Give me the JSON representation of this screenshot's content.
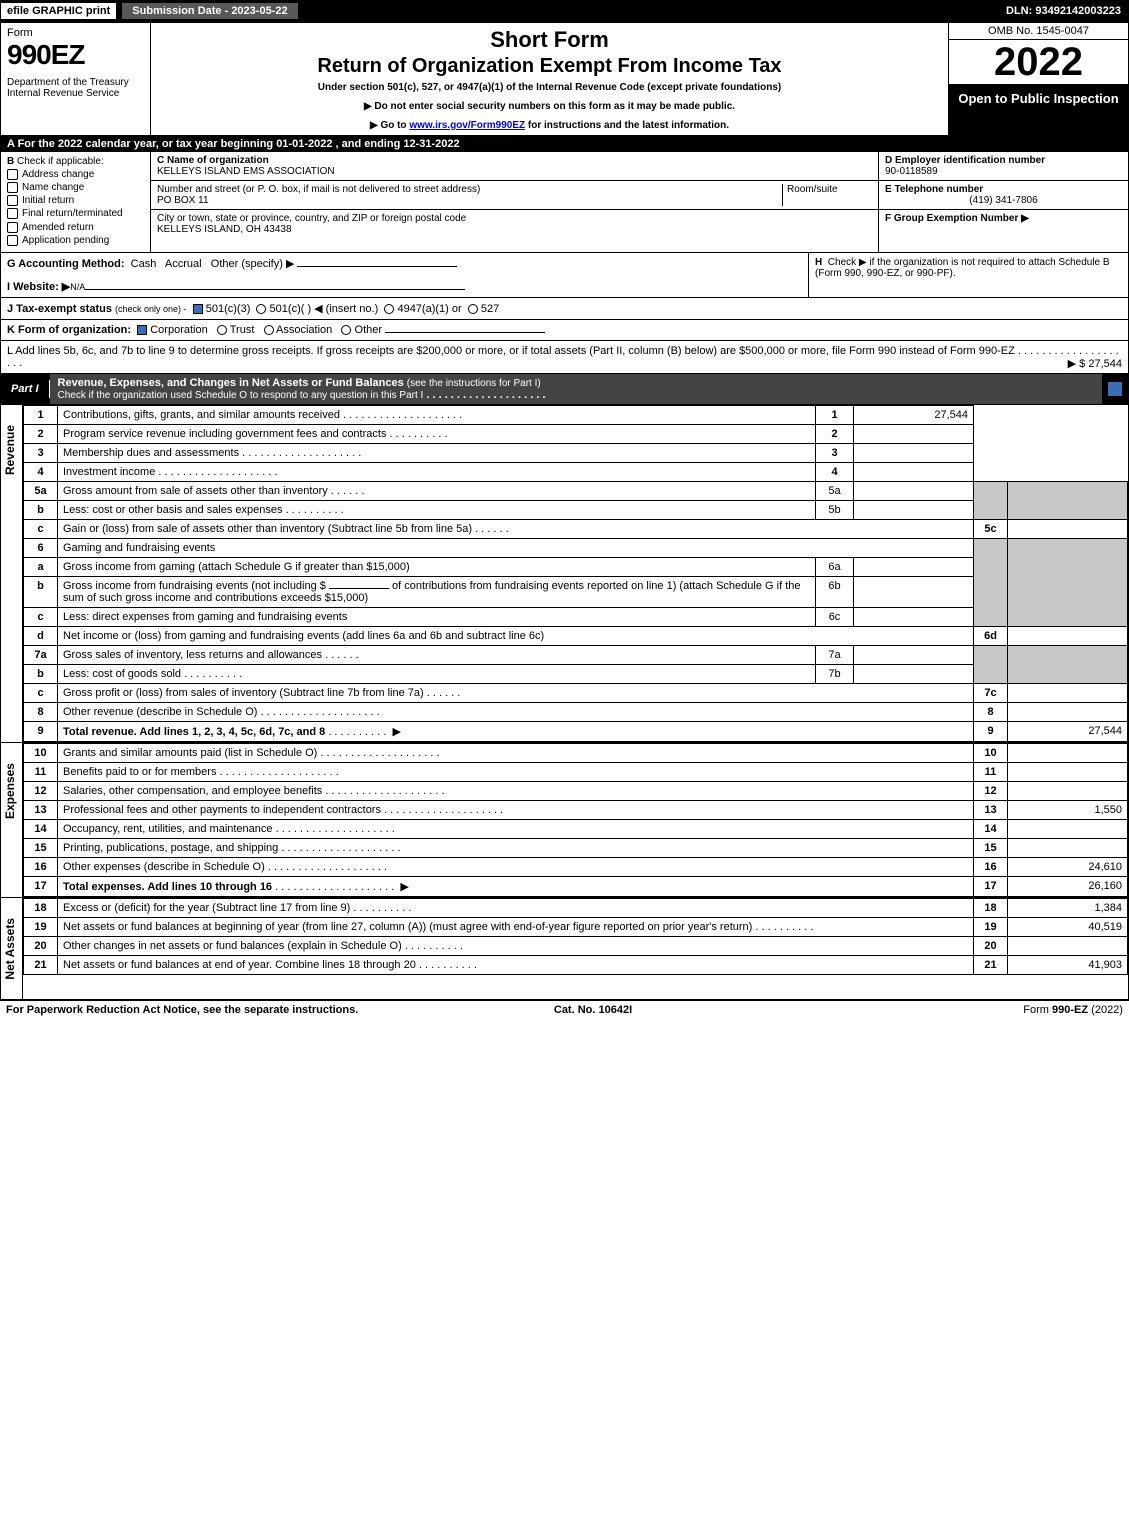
{
  "topbar": {
    "efile": "efile GRAPHIC print",
    "subdate": "Submission Date - 2023-05-22",
    "dln": "DLN: 93492142003223"
  },
  "header": {
    "form_word": "Form",
    "form_num": "990EZ",
    "dept": "Department of the Treasury\nInternal Revenue Service",
    "short": "Short Form",
    "title": "Return of Organization Exempt From Income Tax",
    "under": "Under section 501(c), 527, or 4947(a)(1) of the Internal Revenue Code (except private foundations)",
    "notice1": "▶ Do not enter social security numbers on this form as it may be made public.",
    "notice2_pre": "▶ Go to ",
    "notice2_link": "www.irs.gov/Form990EZ",
    "notice2_post": " for instructions and the latest information.",
    "omb": "OMB No. 1545-0047",
    "year": "2022",
    "open": "Open to Public Inspection"
  },
  "line_a": "A  For the 2022 calendar year, or tax year beginning 01-01-2022  , and ending 12-31-2022",
  "box_b": {
    "hdr": "B",
    "lbl": "Check if applicable:",
    "items": [
      "Address change",
      "Name change",
      "Initial return",
      "Final return/terminated",
      "Amended return",
      "Application pending"
    ]
  },
  "box_c": {
    "c_lbl": "C Name of organization",
    "c_val": "KELLEYS ISLAND EMS ASSOCIATION",
    "addr_lbl": "Number and street (or P. O. box, if mail is not delivered to street address)",
    "addr_val": "PO BOX 11",
    "room_lbl": "Room/suite",
    "city_lbl": "City or town, state or province, country, and ZIP or foreign postal code",
    "city_val": "KELLEYS ISLAND, OH  43438"
  },
  "box_d": {
    "d_lbl": "D Employer identification number",
    "d_val": "90-0118589",
    "e_lbl": "E Telephone number",
    "e_val": "(419) 341-7806",
    "f_lbl": "F Group Exemption Number   ▶"
  },
  "g": {
    "lbl": "G Accounting Method:",
    "cash": "Cash",
    "accrual": "Accrual",
    "other": "Other (specify) ▶"
  },
  "h": {
    "pre": "H",
    "txt": "Check ▶",
    "post": "if the organization is not required to attach Schedule B (Form 990, 990-EZ, or 990-PF)."
  },
  "i": {
    "lbl": "I Website: ▶",
    "val": "N/A"
  },
  "j": {
    "lbl": "J Tax-exempt status",
    "sub": "(check only one) -",
    "o1": "501(c)(3)",
    "o2": "501(c)(  ) ◀ (insert no.)",
    "o3": "4947(a)(1) or",
    "o4": "527"
  },
  "k": {
    "lbl": "K Form of organization:",
    "o1": "Corporation",
    "o2": "Trust",
    "o3": "Association",
    "o4": "Other"
  },
  "l": {
    "txt": "L Add lines 5b, 6c, and 7b to line 9 to determine gross receipts. If gross receipts are $200,000 or more, or if total assets (Part II, column (B) below) are $500,000 or more, file Form 990 instead of Form 990-EZ",
    "amt": "▶ $ 27,544"
  },
  "part1": {
    "tag": "Part I",
    "txt": "Revenue, Expenses, and Changes in Net Assets or Fund Balances",
    "sub": "(see the instructions for Part I)",
    "sub2": "Check if the organization used Schedule O to respond to any question in this Part I"
  },
  "rev": [
    {
      "n": "1",
      "d": "Contributions, gifts, grants, and similar amounts received",
      "r": "1",
      "a": "27,544"
    },
    {
      "n": "2",
      "d": "Program service revenue including government fees and contracts",
      "r": "2",
      "a": ""
    },
    {
      "n": "3",
      "d": "Membership dues and assessments",
      "r": "3",
      "a": ""
    },
    {
      "n": "4",
      "d": "Investment income",
      "r": "4",
      "a": ""
    }
  ],
  "rev5a": {
    "n": "5a",
    "d": "Gross amount from sale of assets other than inventory",
    "sn": "5a"
  },
  "rev5b": {
    "n": "b",
    "d": "Less: cost or other basis and sales expenses",
    "sn": "5b"
  },
  "rev5c": {
    "n": "c",
    "d": "Gain or (loss) from sale of assets other than inventory (Subtract line 5b from line 5a)",
    "r": "5c"
  },
  "rev6": {
    "n": "6",
    "d": "Gaming and fundraising events"
  },
  "rev6a": {
    "n": "a",
    "d": "Gross income from gaming (attach Schedule G if greater than $15,000)",
    "sn": "6a"
  },
  "rev6b": {
    "n": "b",
    "d1": "Gross income from fundraising events (not including $",
    "d2": "of contributions from fundraising events reported on line 1) (attach Schedule G if the sum of such gross income and contributions exceeds $15,000)",
    "sn": "6b"
  },
  "rev6c": {
    "n": "c",
    "d": "Less: direct expenses from gaming and fundraising events",
    "sn": "6c"
  },
  "rev6d": {
    "n": "d",
    "d": "Net income or (loss) from gaming and fundraising events (add lines 6a and 6b and subtract line 6c)",
    "r": "6d"
  },
  "rev7a": {
    "n": "7a",
    "d": "Gross sales of inventory, less returns and allowances",
    "sn": "7a"
  },
  "rev7b": {
    "n": "b",
    "d": "Less: cost of goods sold",
    "sn": "7b"
  },
  "rev7c": {
    "n": "c",
    "d": "Gross profit or (loss) from sales of inventory (Subtract line 7b from line 7a)",
    "r": "7c"
  },
  "rev8": {
    "n": "8",
    "d": "Other revenue (describe in Schedule O)",
    "r": "8"
  },
  "rev9": {
    "n": "9",
    "d": "Total revenue. Add lines 1, 2, 3, 4, 5c, 6d, 7c, and 8",
    "r": "9",
    "a": "27,544"
  },
  "exp": [
    {
      "n": "10",
      "d": "Grants and similar amounts paid (list in Schedule O)",
      "r": "10",
      "a": ""
    },
    {
      "n": "11",
      "d": "Benefits paid to or for members",
      "r": "11",
      "a": ""
    },
    {
      "n": "12",
      "d": "Salaries, other compensation, and employee benefits",
      "r": "12",
      "a": ""
    },
    {
      "n": "13",
      "d": "Professional fees and other payments to independent contractors",
      "r": "13",
      "a": "1,550"
    },
    {
      "n": "14",
      "d": "Occupancy, rent, utilities, and maintenance",
      "r": "14",
      "a": ""
    },
    {
      "n": "15",
      "d": "Printing, publications, postage, and shipping",
      "r": "15",
      "a": ""
    },
    {
      "n": "16",
      "d": "Other expenses (describe in Schedule O)",
      "r": "16",
      "a": "24,610"
    },
    {
      "n": "17",
      "d": "Total expenses. Add lines 10 through 16",
      "r": "17",
      "a": "26,160",
      "bold": true
    }
  ],
  "na": [
    {
      "n": "18",
      "d": "Excess or (deficit) for the year (Subtract line 17 from line 9)",
      "r": "18",
      "a": "1,384"
    },
    {
      "n": "19",
      "d": "Net assets or fund balances at beginning of year (from line 27, column (A)) (must agree with end-of-year figure reported on prior year's return)",
      "r": "19",
      "a": "40,519"
    },
    {
      "n": "20",
      "d": "Other changes in net assets or fund balances (explain in Schedule O)",
      "r": "20",
      "a": ""
    },
    {
      "n": "21",
      "d": "Net assets or fund balances at end of year. Combine lines 18 through 20",
      "r": "21",
      "a": "41,903"
    }
  ],
  "vlabels": {
    "rev": "Revenue",
    "exp": "Expenses",
    "na": "Net Assets"
  },
  "footer": {
    "l": "For Paperwork Reduction Act Notice, see the separate instructions.",
    "c": "Cat. No. 10642I",
    "r_pre": "Form ",
    "r_b": "990-EZ",
    "r_post": " (2022)"
  }
}
